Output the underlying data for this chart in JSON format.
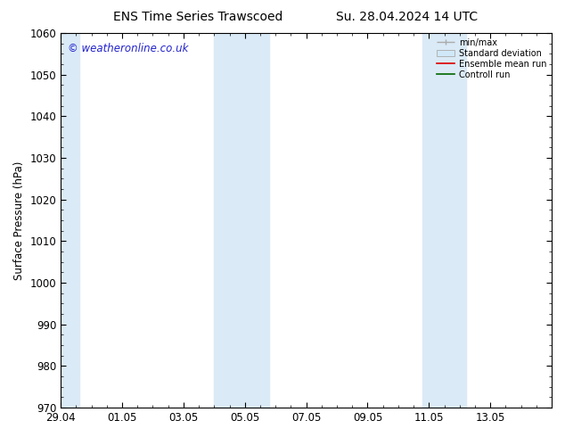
{
  "title_left": "ENS Time Series Trawscoed",
  "title_right": "Su. 28.04.2024 14 UTC",
  "ylabel": "Surface Pressure (hPa)",
  "ylim": [
    970,
    1060
  ],
  "yticks": [
    970,
    980,
    990,
    1000,
    1010,
    1020,
    1030,
    1040,
    1050,
    1060
  ],
  "xlim": [
    0,
    16
  ],
  "xtick_labels": [
    "29.04",
    "01.05",
    "03.05",
    "05.05",
    "07.05",
    "09.05",
    "11.05",
    "13.05"
  ],
  "xtick_positions": [
    0,
    2,
    4,
    6,
    8,
    10,
    12,
    14
  ],
  "bg_color": "#ffffff",
  "plot_bg_color": "#ffffff",
  "shaded_bands": [
    {
      "x_start": -0.1,
      "x_end": 0.6,
      "color": "#daeaf6"
    },
    {
      "x_start": 5.0,
      "x_end": 6.8,
      "color": "#daeaf6"
    },
    {
      "x_start": 11.8,
      "x_end": 13.2,
      "color": "#daeaf6"
    }
  ],
  "watermark_text": "© weatheronline.co.uk",
  "watermark_color": "#2222cc",
  "legend_entries": [
    {
      "label": "min/max",
      "color": "#aaaaaa",
      "type": "line_with_cap"
    },
    {
      "label": "Standard deviation",
      "color": "#d0e8f8",
      "type": "box"
    },
    {
      "label": "Ensemble mean run",
      "color": "#dd0000",
      "type": "line"
    },
    {
      "label": "Controll run",
      "color": "#006600",
      "type": "line"
    }
  ],
  "tick_direction": "in",
  "font_size": 8.5,
  "title_font_size": 10
}
